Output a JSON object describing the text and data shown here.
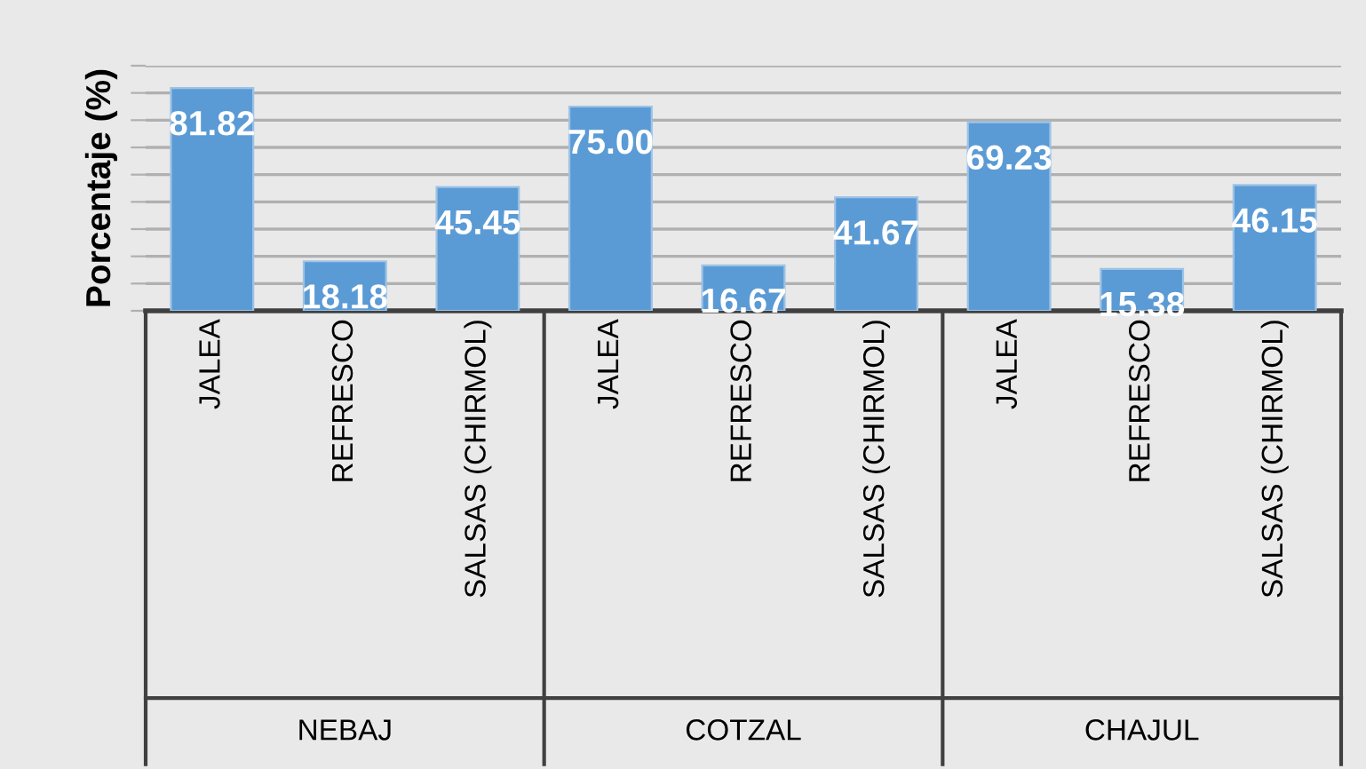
{
  "chart_data": {
    "type": "bar",
    "ylabel": "Porcentaje (%)",
    "categories": [
      "JALEA",
      "REFRESCO",
      "SALSAS (CHIRMOL)",
      "JALEA",
      "REFRESCO",
      "SALSAS (CHIRMOL)",
      "JALEA",
      "REFRESCO",
      "SALSAS (CHIRMOL)"
    ],
    "values": [
      81.82,
      18.18,
      45.45,
      75.0,
      16.67,
      41.67,
      69.23,
      15.38,
      46.15
    ],
    "value_labels": [
      "81.82",
      "18.18",
      "45.45",
      "75.00",
      "16.67",
      "41.67",
      "69.23",
      "15.38",
      "46.15"
    ],
    "color": "#5b9bd5",
    "annotations": [
      "NEBAJ",
      "COTZAL",
      "CHAJUL"
    ],
    "ylim": [
      0,
      90
    ],
    "yticks": [
      {
        "value": 0,
        "label": null
      },
      {
        "value": 10,
        "label": null
      },
      {
        "value": 20,
        "label": null
      },
      {
        "value": 30,
        "label": null
      },
      {
        "value": 40,
        "label": null
      },
      {
        "value": 50,
        "label": null
      },
      {
        "value": 60,
        "label": null
      },
      {
        "value": 70,
        "label": null
      },
      {
        "value": 80,
        "label": null
      },
      {
        "value": 90,
        "label": null
      }
    ],
    "grid": "y"
  }
}
